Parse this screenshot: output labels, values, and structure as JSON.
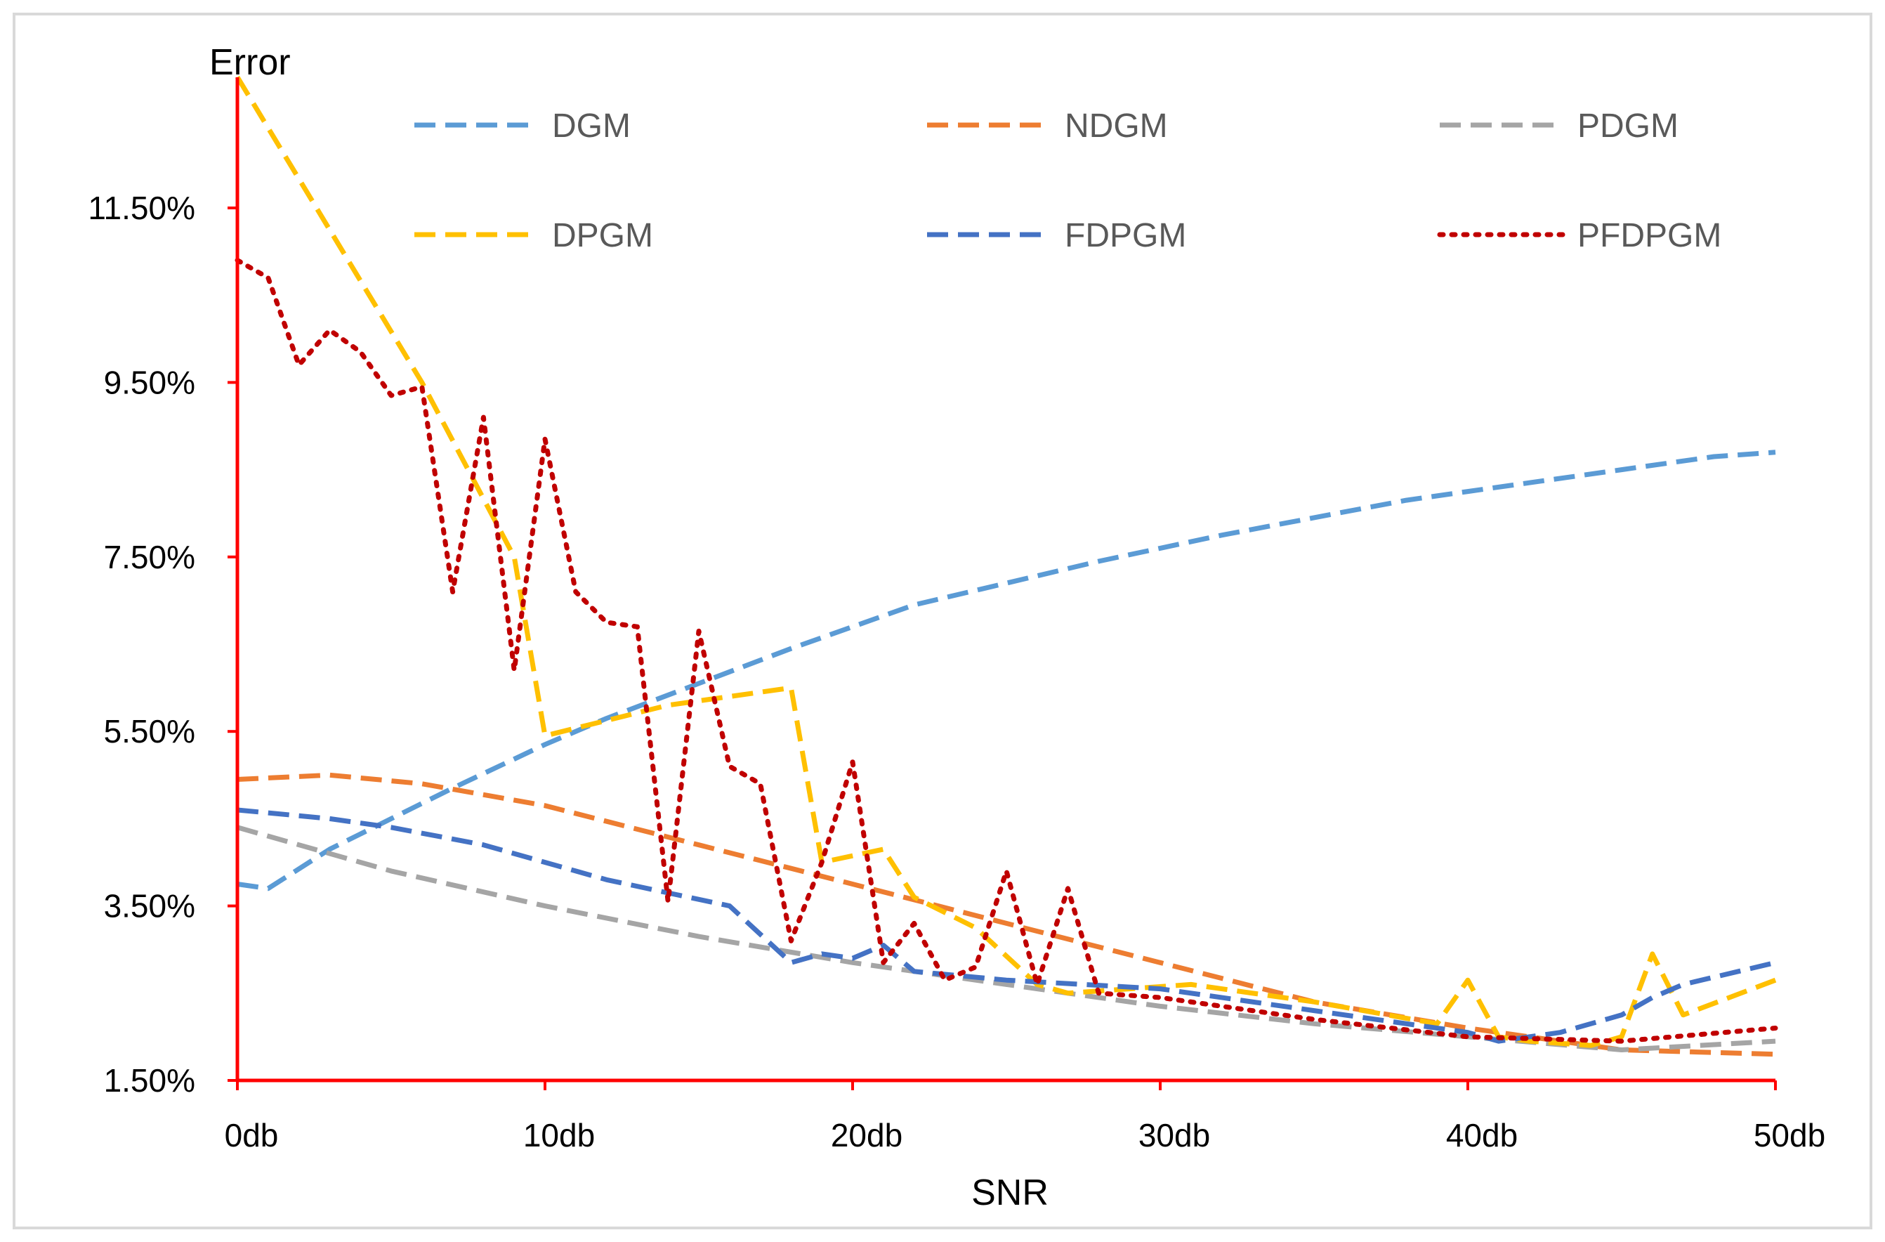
{
  "chart_data": {
    "type": "line",
    "title": "",
    "xlabel": "SNR",
    "ylabel": "Error",
    "xlim": [
      0,
      50
    ],
    "ylim": [
      1.5,
      13.0
    ],
    "yticks": [
      1.5,
      3.5,
      5.5,
      7.5,
      9.5,
      11.5
    ],
    "ytick_labels": [
      "1.50%",
      "3.50%",
      "5.50%",
      "7.50%",
      "9.50%",
      "11.50%"
    ],
    "xticks": [
      0,
      10,
      20,
      30,
      40,
      50
    ],
    "xtick_labels": [
      "0db",
      "10db",
      "20db",
      "30db",
      "40db",
      "50db"
    ],
    "grid": false,
    "legend_position": "top",
    "series": [
      {
        "name": "DGM",
        "color": "#5B9BD5",
        "dash": "dashed",
        "x": [
          0,
          1,
          3,
          5,
          7,
          10,
          12,
          15,
          18,
          20,
          22,
          25,
          28,
          30,
          32,
          35,
          38,
          40,
          42,
          45,
          48,
          50
        ],
        "y": [
          3.75,
          3.7,
          4.15,
          4.5,
          4.85,
          5.35,
          5.65,
          6.05,
          6.45,
          6.7,
          6.95,
          7.2,
          7.45,
          7.6,
          7.75,
          7.95,
          8.15,
          8.25,
          8.35,
          8.5,
          8.65,
          8.7
        ]
      },
      {
        "name": "NDGM",
        "color": "#ED7D31",
        "dash": "dashed",
        "x": [
          0,
          3,
          6,
          10,
          15,
          20,
          25,
          30,
          35,
          40,
          45,
          50
        ],
        "y": [
          4.95,
          5.0,
          4.9,
          4.65,
          4.2,
          3.75,
          3.3,
          2.85,
          2.4,
          2.1,
          1.85,
          1.8
        ]
      },
      {
        "name": "PDGM",
        "color": "#A5A5A5",
        "dash": "dashed",
        "x": [
          0,
          5,
          10,
          15,
          20,
          25,
          30,
          35,
          40,
          45,
          50
        ],
        "y": [
          4.4,
          3.9,
          3.5,
          3.15,
          2.85,
          2.6,
          2.35,
          2.15,
          2.0,
          1.85,
          1.95
        ]
      },
      {
        "name": "DPGM",
        "color": "#FFC000",
        "dash": "dashed",
        "x": [
          0,
          6,
          9,
          10,
          14,
          18,
          19,
          21,
          22,
          24,
          26,
          27,
          29,
          31,
          35,
          39,
          40,
          41,
          42,
          44,
          45,
          46,
          47,
          50
        ],
        "y": [
          13.0,
          9.5,
          7.5,
          5.45,
          5.8,
          6.0,
          4.0,
          4.15,
          3.6,
          3.25,
          2.6,
          2.5,
          2.55,
          2.6,
          2.4,
          2.15,
          2.65,
          2.0,
          1.95,
          1.9,
          2.0,
          2.95,
          2.25,
          2.65
        ]
      },
      {
        "name": "FDPGM",
        "color": "#4472C4",
        "dash": "dashed",
        "x": [
          0,
          3,
          5,
          8,
          11,
          12,
          14,
          16,
          18,
          19,
          20,
          21,
          22,
          25,
          30,
          35,
          40,
          41,
          43,
          45,
          46,
          47,
          50
        ],
        "y": [
          4.6,
          4.5,
          4.4,
          4.2,
          3.9,
          3.8,
          3.65,
          3.5,
          2.85,
          2.95,
          2.9,
          3.05,
          2.75,
          2.65,
          2.55,
          2.3,
          2.05,
          1.95,
          2.05,
          2.25,
          2.45,
          2.6,
          2.85
        ]
      },
      {
        "name": "PFDPGM",
        "color": "#C00000",
        "dash": "dotted",
        "x": [
          0,
          1,
          2,
          3,
          4,
          5,
          6,
          7,
          8,
          9,
          10,
          11,
          12,
          13,
          14,
          15,
          16,
          17,
          18,
          19,
          20,
          21,
          22,
          23,
          24,
          25,
          26,
          27,
          28,
          30,
          35,
          40,
          45,
          50
        ],
        "y": [
          10.9,
          10.7,
          9.7,
          10.1,
          9.85,
          9.35,
          9.45,
          7.1,
          9.1,
          6.2,
          8.85,
          7.1,
          6.75,
          6.7,
          3.55,
          6.65,
          5.1,
          4.9,
          3.1,
          4.0,
          5.15,
          2.85,
          3.3,
          2.65,
          2.8,
          3.9,
          2.6,
          3.7,
          2.5,
          2.45,
          2.2,
          2.0,
          1.95,
          2.1
        ]
      }
    ]
  }
}
